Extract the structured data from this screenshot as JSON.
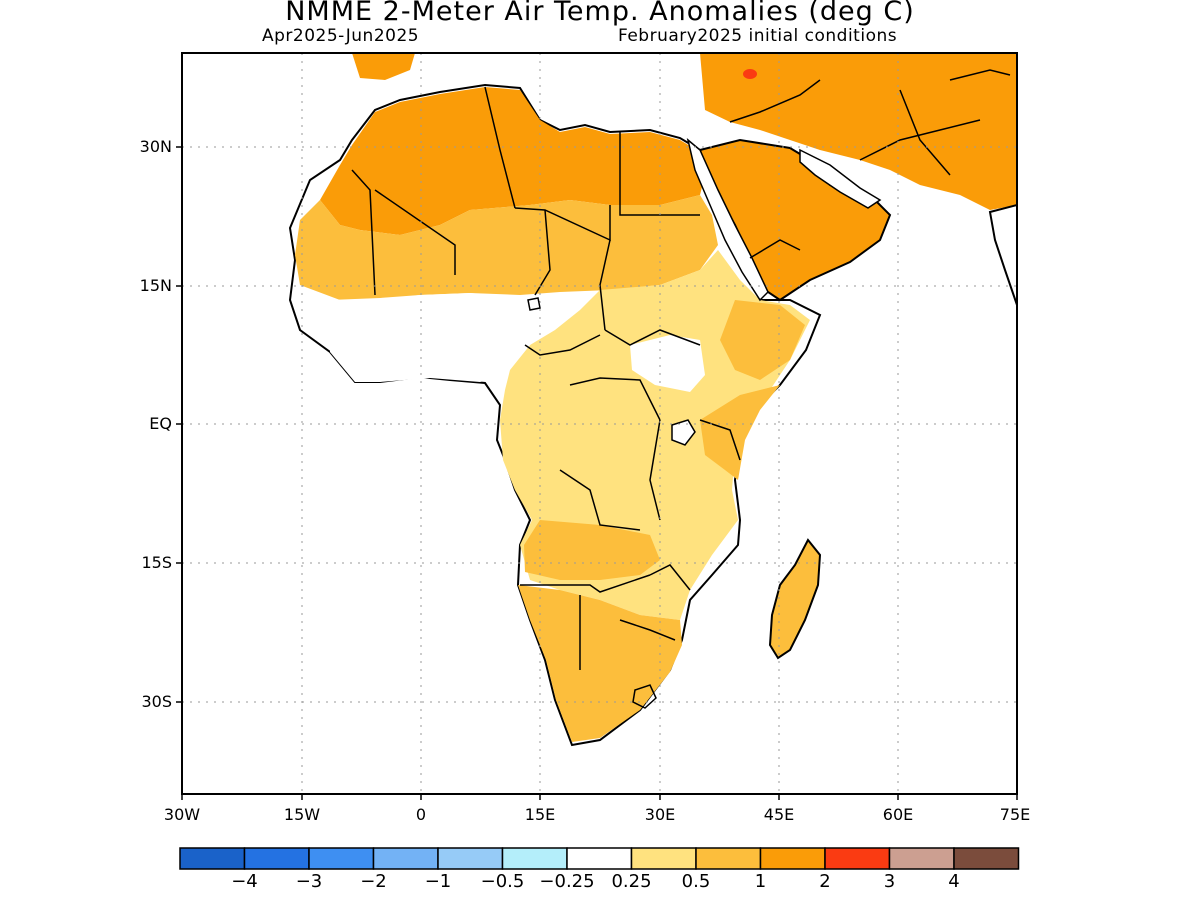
{
  "title": "NMME 2-Meter Air Temp. Anomalies (deg C)",
  "subtitle_left": "Apr2025-Jun2025",
  "subtitle_right": "February2025 initial conditions",
  "latitude_labels": [
    "30N",
    "15N",
    "EQ",
    "15S",
    "30S"
  ],
  "longitude_labels": [
    "30W",
    "15W",
    "0",
    "15E",
    "30E",
    "45E",
    "60E",
    "75E"
  ],
  "colorbar": {
    "colors": [
      "#1a62c9",
      "#2472e2",
      "#3e8ff2",
      "#73b2f5",
      "#96cbf7",
      "#b4eefa",
      "#ffffff",
      "#ffe27f",
      "#fcbe3c",
      "#fa9c08",
      "#fa3b12",
      "#cc9f91",
      "#7b4c3c"
    ],
    "labels": [
      "-4",
      "-3",
      "-2",
      "-1",
      "-0.5",
      "-0.25",
      "0.25",
      "0.5",
      "1",
      "2",
      "3",
      "4"
    ]
  }
}
